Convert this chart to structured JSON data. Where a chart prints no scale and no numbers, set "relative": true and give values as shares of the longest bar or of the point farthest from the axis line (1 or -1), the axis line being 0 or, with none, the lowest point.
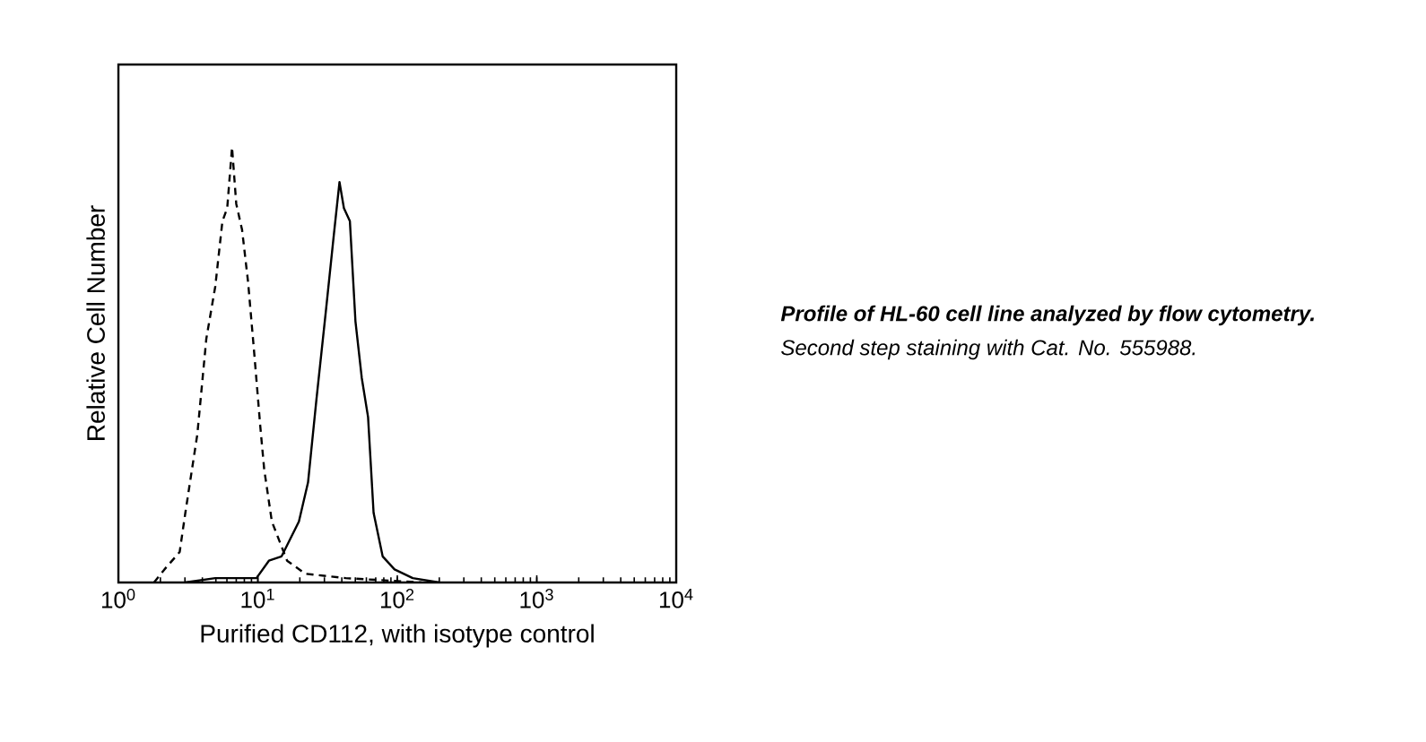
{
  "chart_data": {
    "type": "line",
    "relative": true,
    "log": "x",
    "xlabel": "Purified CD112, with isotype control",
    "ylabel": "Relative Cell Number",
    "xlim": [
      1,
      10000
    ],
    "xticks": [
      {
        "value": 1,
        "label": "10$^{0}$"
      },
      {
        "value": 10,
        "label": "10$^{1}$"
      },
      {
        "value": 100,
        "label": "10$^{2}$"
      },
      {
        "value": 1000,
        "label": "10$^{3}$"
      },
      {
        "value": 10000,
        "label": "10$^{4}$"
      }
    ],
    "series": [
      {
        "color": "#000000",
        "line_style": "dashed",
        "x": [
          1.8,
          2.14,
          2.75,
          3.02,
          3.68,
          4.27,
          4.95,
          5.57,
          6.03,
          6.53,
          7.0,
          7.71,
          8.51,
          9.4,
          10.4,
          11.1,
          12.6,
          16.2,
          21.9,
          42.7,
          150
        ],
        "values": [
          0,
          0.03,
          0.07,
          0.16,
          0.34,
          0.56,
          0.68,
          0.83,
          0.86,
          1,
          0.87,
          0.81,
          0.69,
          0.53,
          0.36,
          0.26,
          0.14,
          0.05,
          0.02,
          0.01,
          0
        ]
      },
      {
        "color": "#000000",
        "line_style": "solid",
        "x": [
          3,
          4.95,
          9.77,
          12.0,
          14.8,
          19.7,
          22.9,
          26.3,
          30.9,
          35.1,
          38.5,
          41.4,
          45.7,
          50.1,
          55.6,
          61.7,
          67.6,
          78.5,
          95.5,
          129,
          200
        ],
        "values": [
          0,
          0.01,
          0.01,
          0.05,
          0.06,
          0.14,
          0.23,
          0.42,
          0.63,
          0.8,
          0.92,
          0.86,
          0.83,
          0.6,
          0.47,
          0.38,
          0.16,
          0.06,
          0.03,
          0.01,
          0
        ]
      }
    ],
    "annotations": [
      "Profile of HL-60 cell line analyzed by flow cytometry.",
      "Second step staining with Cat. No. 555988."
    ]
  }
}
